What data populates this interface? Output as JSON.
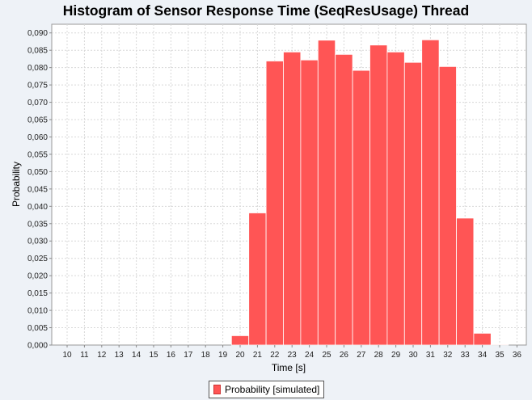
{
  "chart_data": {
    "type": "bar",
    "title": "Histogram of Sensor Response Time (SeqResUsage) Thread",
    "xlabel": "Time [s]",
    "ylabel": "Probability",
    "ylim": [
      0,
      0.0925
    ],
    "yticks": [
      "0,000",
      "0,005",
      "0,010",
      "0,015",
      "0,020",
      "0,025",
      "0,030",
      "0,035",
      "0,040",
      "0,045",
      "0,050",
      "0,055",
      "0,060",
      "0,065",
      "0,070",
      "0,075",
      "0,080",
      "0,085",
      "0,090"
    ],
    "categories": [
      "10",
      "11",
      "12",
      "13",
      "14",
      "15",
      "16",
      "17",
      "18",
      "19",
      "20",
      "21",
      "22",
      "23",
      "24",
      "25",
      "26",
      "27",
      "28",
      "29",
      "30",
      "31",
      "32",
      "33",
      "34",
      "35",
      "36"
    ],
    "series": [
      {
        "name": "Probability [simulated]",
        "color": "#ff5555",
        "values": [
          0,
          0,
          0,
          0,
          0,
          0,
          0,
          0,
          0,
          0,
          0.0027,
          0.0381,
          0.0819,
          0.0845,
          0.0822,
          0.0879,
          0.0838,
          0.0792,
          0.0865,
          0.0845,
          0.0815,
          0.088,
          0.0803,
          0.0366,
          0.0034,
          0.0002,
          0
        ]
      }
    ],
    "grid": true,
    "legend_position": "bottom"
  }
}
